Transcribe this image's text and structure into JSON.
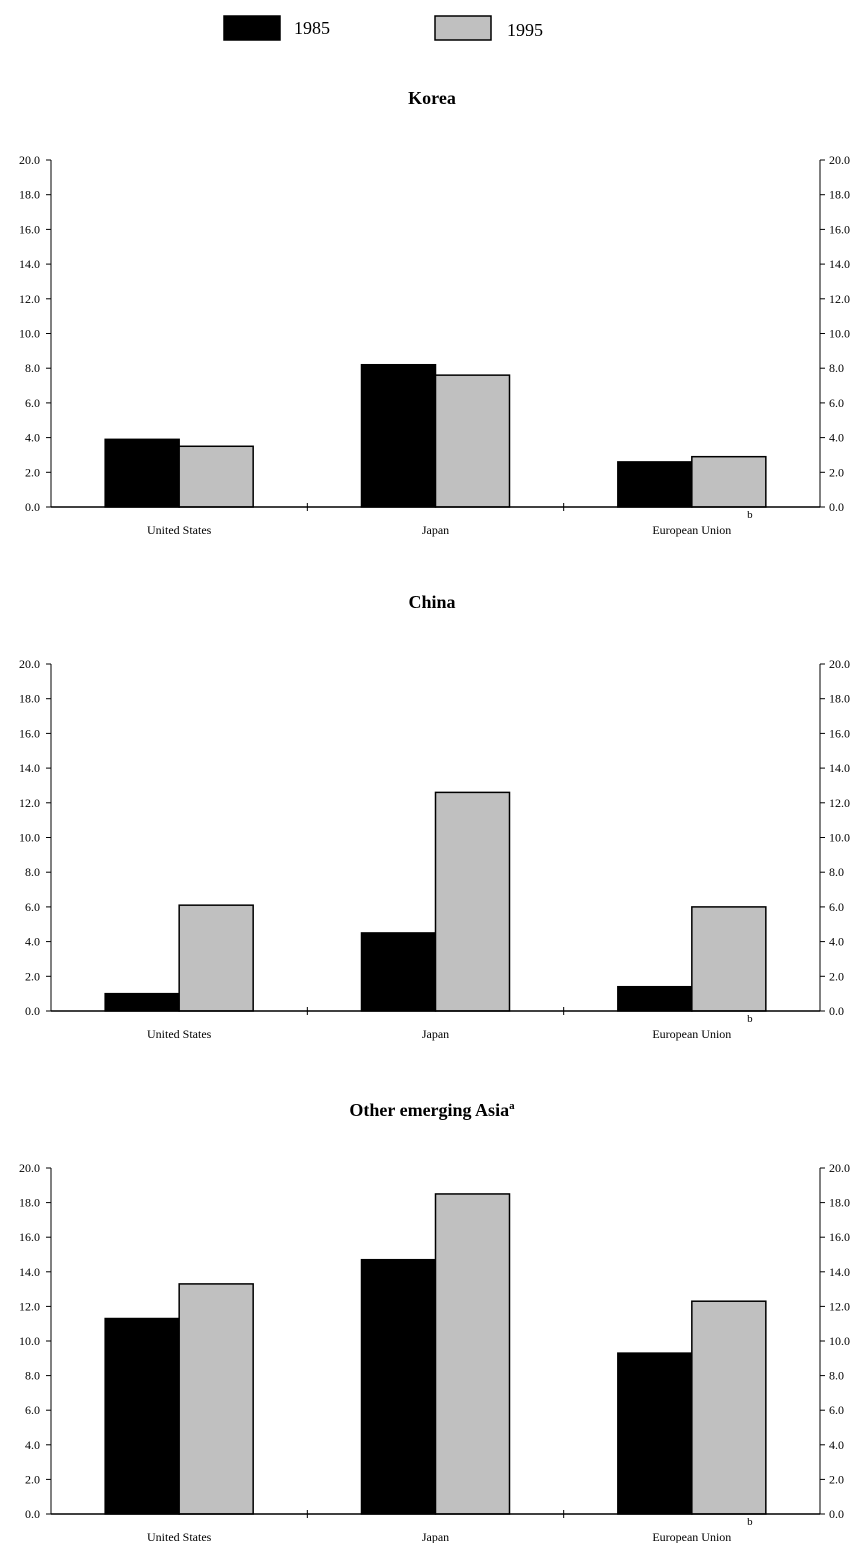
{
  "legend": [
    {
      "label": "1985",
      "color": "#000000"
    },
    {
      "label": "1995",
      "color": "#c0c0c0"
    }
  ],
  "chart_data": [
    {
      "type": "bar",
      "title": "Korea",
      "title_superscript": "",
      "categories": [
        "United States",
        "Japan",
        "European Union"
      ],
      "category_footnotes": [
        "",
        "",
        "b"
      ],
      "series": [
        {
          "name": "1985",
          "color": "#000000",
          "values": [
            3.9,
            8.2,
            2.6
          ]
        },
        {
          "name": "1995",
          "color": "#c0c0c0",
          "values": [
            3.5,
            7.6,
            2.9
          ]
        }
      ],
      "ylim": [
        0,
        20
      ],
      "yticks": [
        "0.0",
        "2.0",
        "4.0",
        "6.0",
        "8.0",
        "10.0",
        "12.0",
        "14.0",
        "16.0",
        "18.0",
        "20.0"
      ],
      "grid": false,
      "dual_axis_labels": true
    },
    {
      "type": "bar",
      "title": "China",
      "title_superscript": "",
      "categories": [
        "United States",
        "Japan",
        "European Union"
      ],
      "category_footnotes": [
        "",
        "",
        "b"
      ],
      "series": [
        {
          "name": "1985",
          "color": "#000000",
          "values": [
            1.0,
            4.5,
            1.4
          ]
        },
        {
          "name": "1995",
          "color": "#c0c0c0",
          "values": [
            6.1,
            12.6,
            6.0
          ]
        }
      ],
      "ylim": [
        0,
        20
      ],
      "yticks": [
        "0.0",
        "2.0",
        "4.0",
        "6.0",
        "8.0",
        "10.0",
        "12.0",
        "14.0",
        "16.0",
        "18.0",
        "20.0"
      ],
      "grid": false,
      "dual_axis_labels": true
    },
    {
      "type": "bar",
      "title": "Other emerging Asia",
      "title_superscript": "a",
      "categories": [
        "United States",
        "Japan",
        "European Union"
      ],
      "category_footnotes": [
        "",
        "",
        "b"
      ],
      "series": [
        {
          "name": "1985",
          "color": "#000000",
          "values": [
            11.3,
            14.7,
            9.3
          ]
        },
        {
          "name": "1995",
          "color": "#c0c0c0",
          "values": [
            13.3,
            18.5,
            12.3
          ]
        }
      ],
      "ylim": [
        0,
        20
      ],
      "yticks": [
        "0.0",
        "2.0",
        "4.0",
        "6.0",
        "8.0",
        "10.0",
        "12.0",
        "14.0",
        "16.0",
        "18.0",
        "20.0"
      ],
      "grid": false,
      "dual_axis_labels": true
    }
  ]
}
